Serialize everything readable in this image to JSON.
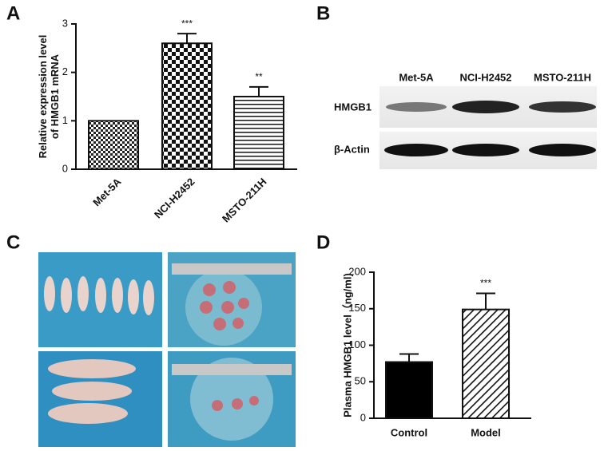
{
  "panel_labels": [
    "A",
    "B",
    "C",
    "D"
  ],
  "chart_data": [
    {
      "type": "bar",
      "ylabel": [
        "Relative expression level",
        "of HMGB1 mRNA"
      ],
      "categories": [
        "Met-5A",
        "NCI-H2452",
        "MSTO-211H"
      ],
      "values": [
        1,
        2.6,
        1.5
      ],
      "errors": [
        null,
        0.2,
        0.2
      ],
      "value_annotations": [
        null,
        "***",
        "**"
      ],
      "patterns": [
        "fine-checker",
        "checker",
        "horizontal-lines"
      ],
      "ylim": [
        0,
        3
      ],
      "yticks": [
        0,
        1,
        2,
        3
      ]
    },
    {
      "type": "bar",
      "ylabel": [
        "Plasma HMGB1 level（ng/ml)"
      ],
      "categories": [
        "Control",
        "Model"
      ],
      "values": [
        77,
        149
      ],
      "errors": [
        11,
        22
      ],
      "value_annotations": [
        null,
        "***"
      ],
      "patterns": [
        "solid",
        "diagonal-lines"
      ],
      "ylim": [
        0,
        200
      ],
      "yticks": [
        0,
        50,
        100,
        150,
        200
      ]
    }
  ],
  "blot": {
    "columns": [
      "Met-5A",
      "NCI-H2452",
      "MSTO-211H"
    ],
    "rows": [
      "HMGB1",
      "β-Actin"
    ]
  }
}
